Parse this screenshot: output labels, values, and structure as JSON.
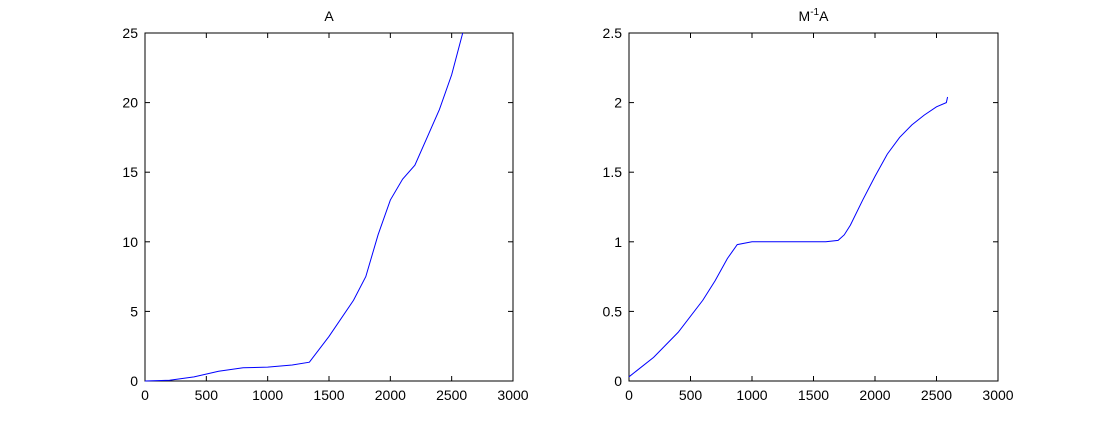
{
  "chart_data": [
    {
      "type": "line",
      "title": "A",
      "x": [
        0,
        200,
        400,
        600,
        800,
        1000,
        1200,
        1340,
        1500,
        1700,
        1800,
        1900,
        2000,
        2100,
        2200,
        2300,
        2400,
        2500,
        2590
      ],
      "series": [
        {
          "color": "#0000ff",
          "values": [
            0,
            0.05,
            0.3,
            0.7,
            0.95,
            1.0,
            1.15,
            1.35,
            3.2,
            5.8,
            7.5,
            10.5,
            13,
            14.5,
            15.5,
            17.5,
            19.5,
            22,
            25
          ]
        }
      ],
      "xlim": [
        0,
        3000
      ],
      "xticks": [
        0,
        500,
        1000,
        1500,
        2000,
        2500,
        3000
      ],
      "ylim": [
        0,
        25
      ],
      "yticks": [
        0,
        5,
        10,
        15,
        20,
        25
      ]
    },
    {
      "type": "line",
      "title": "M",
      "title_superscript": "-1",
      "title_suffix": "A",
      "x": [
        0,
        200,
        400,
        600,
        700,
        800,
        880,
        1000,
        1200,
        1400,
        1600,
        1700,
        1750,
        1800,
        1900,
        2000,
        2100,
        2200,
        2300,
        2400,
        2500,
        2580,
        2590
      ],
      "series": [
        {
          "color": "#0000ff",
          "values": [
            0.03,
            0.17,
            0.35,
            0.58,
            0.72,
            0.88,
            0.98,
            1.0,
            1.0,
            1.0,
            1.0,
            1.01,
            1.05,
            1.12,
            1.3,
            1.47,
            1.63,
            1.75,
            1.84,
            1.91,
            1.97,
            2.0,
            2.04
          ]
        }
      ],
      "xlim": [
        0,
        3000
      ],
      "xticks": [
        0,
        500,
        1000,
        1500,
        2000,
        2500,
        3000
      ],
      "ylim": [
        0,
        2.5
      ],
      "yticks": [
        0,
        0.5,
        1,
        1.5,
        2,
        2.5
      ]
    }
  ]
}
